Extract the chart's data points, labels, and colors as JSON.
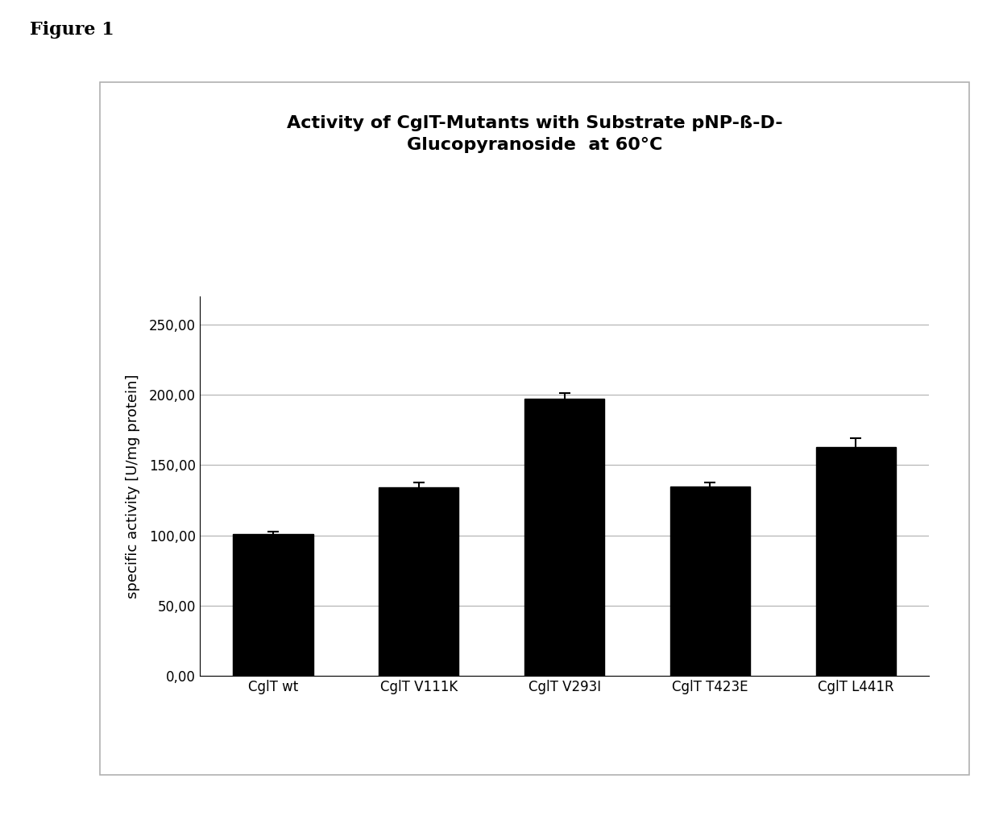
{
  "title_line1": "Activity of CglT-Mutants with Substrate pNP-ß-D-",
  "title_line2": "Glucopyranoside  at 60°C",
  "figure_label": "Figure 1",
  "categories": [
    "CglT wt",
    "CglT V111K",
    "CglT V293I",
    "CglT T423E",
    "CglT L441R"
  ],
  "values": [
    101.0,
    134.0,
    197.5,
    134.5,
    163.0
  ],
  "errors": [
    1.5,
    3.5,
    4.0,
    3.0,
    6.0
  ],
  "bar_color": "#000000",
  "bar_width": 0.55,
  "ylabel": "specific activity [U/mg protein]",
  "yticks": [
    0.0,
    50.0,
    100.0,
    150.0,
    200.0,
    250.0
  ],
  "ytick_labels": [
    "0,00",
    "50,00",
    "100,00",
    "150,00",
    "200,00",
    "250,00"
  ],
  "ylim": [
    0,
    270
  ],
  "background_color": "#ffffff",
  "panel_bg": "#ffffff",
  "grid_color": "#b0b0b0",
  "box_border_color": "#b0b0b0",
  "title_fontsize": 16,
  "label_fontsize": 13,
  "tick_fontsize": 12,
  "figure_label_fontsize": 16
}
